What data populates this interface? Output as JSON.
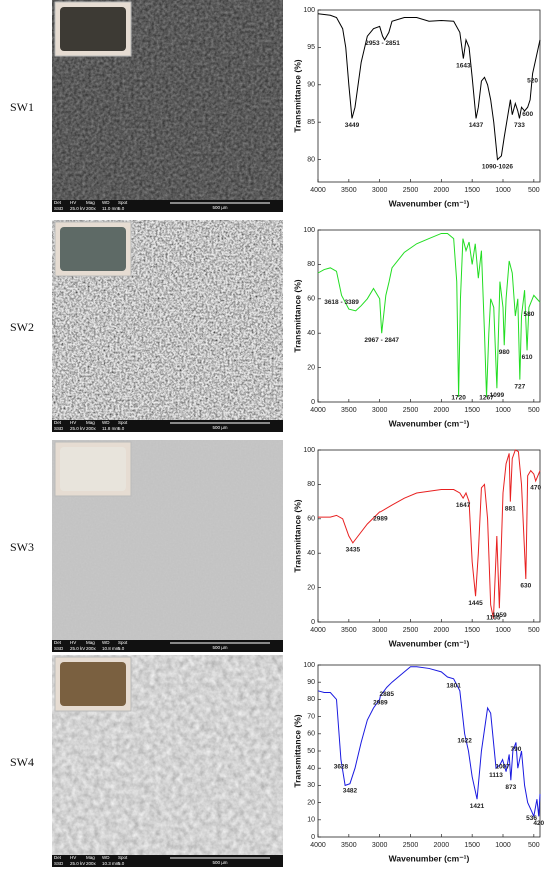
{
  "chart_data": [
    {
      "type": "line",
      "title": "SW1",
      "xlabel": "Wavenumber (cm⁻¹)",
      "ylabel": "Transmittance (%)",
      "color": "#000000",
      "xlim": [
        4000,
        400
      ],
      "xticks": [
        4000,
        3500,
        3000,
        2500,
        2000,
        1500,
        1000,
        500
      ],
      "ylim": [
        77,
        100
      ],
      "yticks": [
        80,
        85,
        90,
        95,
        100
      ],
      "x": [
        4000,
        3800,
        3700,
        3600,
        3550,
        3500,
        3449,
        3400,
        3300,
        3200,
        3100,
        3000,
        2953,
        2920,
        2851,
        2800,
        2600,
        2400,
        2200,
        2000,
        1800,
        1700,
        1643,
        1600,
        1550,
        1500,
        1437,
        1400,
        1350,
        1300,
        1250,
        1200,
        1150,
        1090,
        1026,
        980,
        920,
        880,
        850,
        800,
        760,
        733,
        700,
        650,
        600,
        560,
        520,
        480,
        400
      ],
      "values": [
        99.5,
        99.3,
        99,
        97.5,
        95,
        90,
        85.5,
        87,
        93,
        96.5,
        97.5,
        97.8,
        96.5,
        96,
        97,
        98.5,
        99,
        99,
        98.5,
        98.6,
        98.5,
        97,
        93.5,
        96,
        95,
        91,
        85.5,
        87,
        90.5,
        91,
        90,
        88,
        85,
        80,
        80.5,
        83,
        86,
        88,
        86,
        87.5,
        86.5,
        85.5,
        87,
        86.5,
        87,
        88,
        91.5,
        93,
        96
      ],
      "annotations": [
        {
          "label": "3449",
          "x": 3449
        },
        {
          "label": "2953 - 2851",
          "x": 2953
        },
        {
          "label": "1643",
          "x": 1643
        },
        {
          "label": "1437",
          "x": 1437
        },
        {
          "label": "1090-1026",
          "x": 1090
        },
        {
          "label": "733",
          "x": 733
        },
        {
          "label": "600",
          "x": 600
        },
        {
          "label": "520",
          "x": 520
        }
      ]
    },
    {
      "type": "line",
      "title": "SW2",
      "xlabel": "Wavenumber (cm⁻¹)",
      "ylabel": "Transmittance (%)",
      "color": "#22dd22",
      "xlim": [
        4000,
        400
      ],
      "xticks": [
        4000,
        3500,
        3000,
        2500,
        2000,
        1500,
        1000,
        500
      ],
      "ylim": [
        0,
        100
      ],
      "yticks": [
        0,
        20,
        40,
        60,
        80,
        100
      ],
      "x": [
        4000,
        3900,
        3800,
        3700,
        3618,
        3500,
        3389,
        3300,
        3200,
        3100,
        3000,
        2967,
        2900,
        2847,
        2800,
        2600,
        2400,
        2200,
        2000,
        1900,
        1800,
        1750,
        1720,
        1690,
        1650,
        1600,
        1550,
        1500,
        1450,
        1400,
        1350,
        1300,
        1267,
        1230,
        1200,
        1150,
        1099,
        1050,
        1000,
        980,
        950,
        900,
        850,
        800,
        760,
        727,
        700,
        650,
        610,
        580,
        500,
        400
      ],
      "values": [
        75,
        77,
        78,
        76,
        62,
        54,
        53,
        56,
        60,
        66,
        60,
        40,
        62,
        70,
        78,
        87,
        92,
        95,
        98,
        98,
        95,
        70,
        3,
        60,
        95,
        88,
        93,
        80,
        92,
        72,
        88,
        40,
        3,
        40,
        60,
        55,
        8,
        70,
        55,
        33,
        60,
        82,
        75,
        50,
        60,
        13,
        50,
        65,
        30,
        55,
        62,
        58
      ],
      "annotations": [
        {
          "label": "3618 - 3389",
          "x": 3618
        },
        {
          "label": "2967 - 2847",
          "x": 2967
        },
        {
          "label": "1720",
          "x": 1720
        },
        {
          "label": "1267",
          "x": 1267
        },
        {
          "label": "1099",
          "x": 1099
        },
        {
          "label": "980",
          "x": 980
        },
        {
          "label": "727",
          "x": 727
        },
        {
          "label": "610",
          "x": 610
        },
        {
          "label": "580",
          "x": 580
        }
      ]
    },
    {
      "type": "line",
      "title": "SW3",
      "xlabel": "Wavenumber (cm⁻¹)",
      "ylabel": "Transmittance (%)",
      "color": "#e82020",
      "xlim": [
        4000,
        400
      ],
      "xticks": [
        4000,
        3500,
        3000,
        2500,
        2000,
        1500,
        1000,
        500
      ],
      "ylim": [
        0,
        100
      ],
      "yticks": [
        0,
        20,
        40,
        60,
        80,
        100
      ],
      "x": [
        4000,
        3800,
        3700,
        3600,
        3500,
        3435,
        3350,
        3200,
        3000,
        2989,
        2800,
        2600,
        2400,
        2200,
        2000,
        1800,
        1700,
        1647,
        1600,
        1550,
        1500,
        1445,
        1400,
        1350,
        1300,
        1250,
        1200,
        1155,
        1100,
        1059,
        1000,
        950,
        900,
        881,
        850,
        800,
        750,
        700,
        630,
        600,
        550,
        500,
        470,
        400
      ],
      "values": [
        61,
        61,
        62,
        60,
        50,
        46,
        50,
        57,
        64,
        64,
        68,
        72,
        75,
        76,
        77,
        77,
        75,
        72,
        75,
        70,
        35,
        15,
        40,
        78,
        80,
        60,
        10,
        2,
        50,
        8,
        75,
        92,
        98,
        70,
        95,
        100,
        99,
        80,
        25,
        85,
        88,
        86,
        82,
        88
      ],
      "annotations": [
        {
          "label": "3435",
          "x": 3435
        },
        {
          "label": "2989",
          "x": 2989
        },
        {
          "label": "1647",
          "x": 1647
        },
        {
          "label": "1445",
          "x": 1445
        },
        {
          "label": "1155",
          "x": 1155
        },
        {
          "label": "1059",
          "x": 1059
        },
        {
          "label": "881",
          "x": 881
        },
        {
          "label": "630",
          "x": 630
        },
        {
          "label": "470",
          "x": 470
        }
      ]
    },
    {
      "type": "line",
      "title": "SW4",
      "xlabel": "Wavenumber (cm⁻¹)",
      "ylabel": "Transmittance (%)",
      "color": "#1a1ae0",
      "xlim": [
        4000,
        400
      ],
      "xticks": [
        4000,
        3500,
        3000,
        2500,
        2000,
        1500,
        1000,
        500
      ],
      "ylim": [
        0,
        100
      ],
      "yticks": [
        0,
        10,
        20,
        30,
        40,
        50,
        60,
        70,
        80,
        90,
        100
      ],
      "x": [
        4000,
        3900,
        3800,
        3700,
        3628,
        3560,
        3482,
        3400,
        3300,
        3200,
        3100,
        3000,
        2989,
        2885,
        2800,
        2600,
        2500,
        2400,
        2200,
        2000,
        1900,
        1801,
        1700,
        1622,
        1560,
        1500,
        1421,
        1350,
        1250,
        1200,
        1113,
        1050,
        1007,
        950,
        900,
        873,
        840,
        790,
        760,
        700,
        650,
        600,
        536,
        500,
        450,
        420,
        400
      ],
      "values": [
        85,
        84,
        84,
        80,
        45,
        30,
        31,
        40,
        55,
        68,
        75,
        80,
        82,
        87,
        90,
        96,
        99,
        99,
        98,
        96,
        93,
        92,
        85,
        60,
        50,
        35,
        22,
        50,
        75,
        72,
        40,
        42,
        45,
        38,
        48,
        33,
        50,
        55,
        40,
        50,
        30,
        20,
        15,
        12,
        22,
        12,
        25
      ],
      "annotations": [
        {
          "label": "3628",
          "x": 3628
        },
        {
          "label": "3482",
          "x": 3482
        },
        {
          "label": "2989",
          "x": 2989
        },
        {
          "label": "2885",
          "x": 2885
        },
        {
          "label": "1801",
          "x": 1801
        },
        {
          "label": "1622",
          "x": 1622
        },
        {
          "label": "1421",
          "x": 1421
        },
        {
          "label": "1113",
          "x": 1113
        },
        {
          "label": "1007",
          "x": 1007
        },
        {
          "label": "873",
          "x": 873
        },
        {
          "label": "790",
          "x": 790
        },
        {
          "label": "536",
          "x": 536
        },
        {
          "label": "420",
          "x": 420
        }
      ]
    }
  ],
  "sem": {
    "headers": [
      "Det",
      "HV",
      "Mag",
      "WD",
      "Spot"
    ],
    "images": [
      {
        "values": [
          "SSD",
          "25.0 kV",
          "200x",
          "11.0 mm",
          "5.0"
        ],
        "scale": "500 µm"
      },
      {
        "values": [
          "SSD",
          "25.0 kV",
          "200x",
          "11.8 mm",
          "5.0"
        ],
        "scale": "500 µm"
      },
      {
        "values": [
          "SSD",
          "25.0 kV",
          "200x",
          "10.8 mm",
          "5.0"
        ],
        "scale": "500 µm"
      },
      {
        "values": [
          "SSD",
          "25.0 kV",
          "200x",
          "10.3 mm",
          "5.0"
        ],
        "scale": "500 µm"
      }
    ]
  }
}
